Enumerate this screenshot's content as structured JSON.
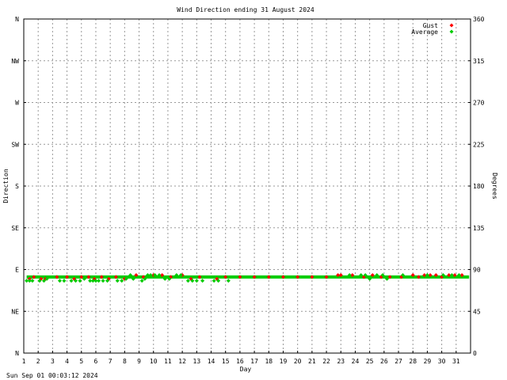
{
  "chart_data": {
    "type": "scatter",
    "title": "Wind Direction ending 31 August 2024",
    "xlabel": "Day",
    "ylabel_left": "Direction",
    "ylabel_right": "Degrees",
    "footer": "Sun Sep 01 00:03:12 2024",
    "x_ticks": [
      "1",
      "2",
      "3",
      "4",
      "5",
      "6",
      "7",
      "8",
      "9",
      "10",
      "11",
      "12",
      "13",
      "14",
      "15",
      "16",
      "17",
      "18",
      "19",
      "20",
      "21",
      "22",
      "23",
      "24",
      "25",
      "26",
      "27",
      "28",
      "29",
      "30",
      "31"
    ],
    "x_range": [
      1,
      32
    ],
    "y_range": [
      0,
      360
    ],
    "y_left_ticks": [
      {
        "value": 0,
        "label": "N"
      },
      {
        "value": 45,
        "label": "NE"
      },
      {
        "value": 90,
        "label": "E"
      },
      {
        "value": 135,
        "label": "SE"
      },
      {
        "value": 180,
        "label": "S"
      },
      {
        "value": 225,
        "label": "SW"
      },
      {
        "value": 270,
        "label": "W"
      },
      {
        "value": 315,
        "label": "NW"
      },
      {
        "value": 360,
        "label": "N"
      }
    ],
    "y_right_ticks": [
      {
        "value": 0,
        "label": "0"
      },
      {
        "value": 45,
        "label": "45"
      },
      {
        "value": 90,
        "label": "90"
      },
      {
        "value": 135,
        "label": "135"
      },
      {
        "value": 180,
        "label": "180"
      },
      {
        "value": 225,
        "label": "225"
      },
      {
        "value": 270,
        "label": "270"
      },
      {
        "value": 315,
        "label": "315"
      },
      {
        "value": 360,
        "label": "360"
      }
    ],
    "grid": true,
    "legend_position": "top-right",
    "series": [
      {
        "name": "Gust",
        "color": "#ff0000",
        "points": [
          [
            1.4,
            80
          ],
          [
            1.7,
            82
          ],
          [
            2.2,
            80
          ],
          [
            2.5,
            80
          ],
          [
            3.3,
            82
          ],
          [
            4.0,
            82
          ],
          [
            4.5,
            80
          ],
          [
            5.0,
            82
          ],
          [
            5.5,
            82
          ],
          [
            5.9,
            80
          ],
          [
            6.4,
            82
          ],
          [
            6.9,
            80
          ],
          [
            7.4,
            82
          ],
          [
            8.0,
            80
          ],
          [
            8.8,
            84
          ],
          [
            9.3,
            82
          ],
          [
            10.0,
            84
          ],
          [
            10.6,
            84
          ],
          [
            11.2,
            82
          ],
          [
            12.0,
            84
          ],
          [
            12.6,
            80
          ],
          [
            13.2,
            82
          ],
          [
            14.4,
            80
          ],
          [
            15.0,
            82
          ],
          [
            16.0,
            82
          ],
          [
            17.0,
            82
          ],
          [
            18.0,
            82
          ],
          [
            19.0,
            82
          ],
          [
            20.0,
            82
          ],
          [
            21.0,
            82
          ],
          [
            22.0,
            82
          ],
          [
            22.8,
            84
          ],
          [
            23.0,
            84
          ],
          [
            23.8,
            84
          ],
          [
            24.6,
            82
          ],
          [
            25.2,
            84
          ],
          [
            25.8,
            82
          ],
          [
            26.4,
            82
          ],
          [
            27.2,
            82
          ],
          [
            28.0,
            84
          ],
          [
            28.4,
            82
          ],
          [
            28.8,
            84
          ],
          [
            29.2,
            84
          ],
          [
            29.6,
            84
          ],
          [
            30.0,
            82
          ],
          [
            30.5,
            84
          ],
          [
            30.9,
            84
          ],
          [
            31.4,
            84
          ]
        ]
      },
      {
        "name": "Average",
        "color": "#00cc00",
        "baseline": 82,
        "points": [
          [
            1.2,
            78
          ],
          [
            1.4,
            78
          ],
          [
            1.6,
            78
          ],
          [
            2.1,
            78
          ],
          [
            2.4,
            78
          ],
          [
            2.6,
            80
          ],
          [
            3.5,
            78
          ],
          [
            3.8,
            78
          ],
          [
            4.3,
            78
          ],
          [
            4.6,
            78
          ],
          [
            4.9,
            78
          ],
          [
            5.2,
            80
          ],
          [
            5.6,
            78
          ],
          [
            5.8,
            78
          ],
          [
            6.0,
            78
          ],
          [
            6.2,
            78
          ],
          [
            6.5,
            78
          ],
          [
            6.8,
            78
          ],
          [
            7.5,
            78
          ],
          [
            7.8,
            78
          ],
          [
            8.1,
            80
          ],
          [
            8.4,
            84
          ],
          [
            8.6,
            80
          ],
          [
            9.2,
            78
          ],
          [
            9.4,
            80
          ],
          [
            9.6,
            84
          ],
          [
            9.8,
            84
          ],
          [
            10.1,
            84
          ],
          [
            10.4,
            84
          ],
          [
            10.8,
            80
          ],
          [
            11.1,
            80
          ],
          [
            11.6,
            84
          ],
          [
            11.9,
            84
          ],
          [
            12.4,
            78
          ],
          [
            12.7,
            78
          ],
          [
            13.0,
            78
          ],
          [
            13.4,
            78
          ],
          [
            14.2,
            78
          ],
          [
            14.5,
            78
          ],
          [
            15.2,
            78
          ],
          [
            23.6,
            84
          ],
          [
            24.4,
            84
          ],
          [
            24.7,
            84
          ],
          [
            25.0,
            80
          ],
          [
            25.5,
            84
          ],
          [
            25.9,
            84
          ],
          [
            26.2,
            80
          ],
          [
            27.3,
            84
          ],
          [
            29.0,
            84
          ],
          [
            30.1,
            84
          ],
          [
            30.7,
            84
          ],
          [
            31.2,
            84
          ]
        ]
      }
    ]
  }
}
